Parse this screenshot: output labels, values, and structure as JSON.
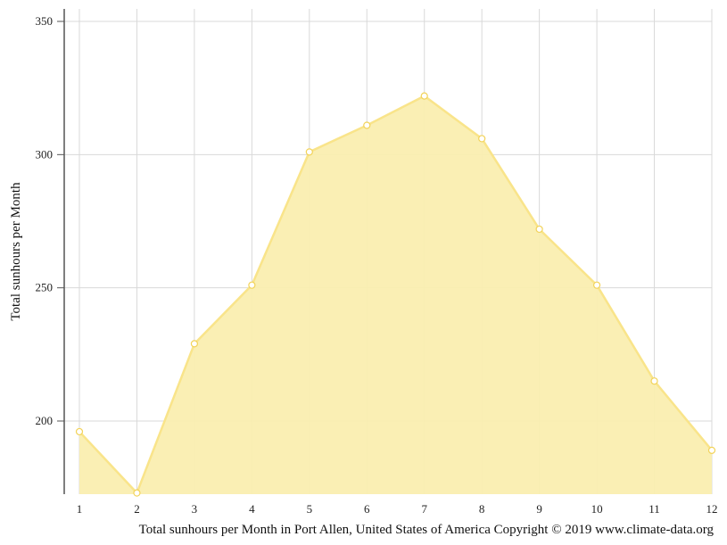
{
  "chart_data": {
    "type": "area",
    "ylabel": "Total sunhours per Month",
    "caption": "Total sunhours per Month in Port Allen, United States of America Copyright © 2019 www.climate-data.org",
    "x": [
      1,
      2,
      3,
      4,
      5,
      6,
      7,
      8,
      9,
      10,
      11,
      12
    ],
    "x_tick_labels": [
      "1",
      "2",
      "3",
      "4",
      "5",
      "6",
      "7",
      "8",
      "9",
      "10",
      "11",
      "12"
    ],
    "y_ticks": [
      200,
      250,
      300,
      350
    ],
    "y_tick_labels": [
      "200",
      "250",
      "300",
      "350"
    ],
    "ylim": [
      173,
      355
    ],
    "xlim": [
      1,
      12
    ],
    "series": [
      {
        "values": [
          196,
          173,
          229,
          251,
          301,
          311,
          322,
          306,
          272,
          251,
          215,
          189
        ]
      }
    ],
    "grid": true,
    "colors": {
      "fill": "#faeeb0",
      "line": "#f9e48a",
      "marker_fill": "#ffffff",
      "marker_stroke": "#f2d35a",
      "grid": "#d9d9d9",
      "axis": "#555555"
    }
  }
}
